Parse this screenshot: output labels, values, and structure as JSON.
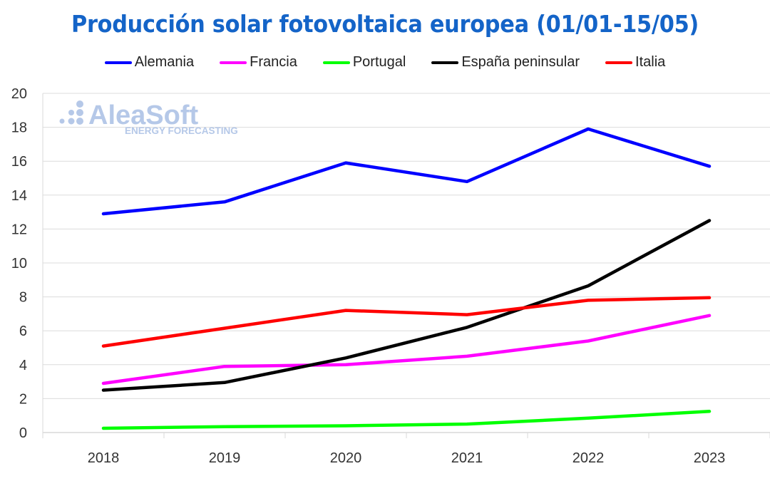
{
  "chart_data": {
    "type": "line",
    "title": "Producción solar fotovoltaica europea (01/01-15/05)",
    "xlabel": "",
    "ylabel": "",
    "categories": [
      "2018",
      "2019",
      "2020",
      "2021",
      "2022",
      "2023"
    ],
    "ylim": [
      0,
      20
    ],
    "yticks": [
      "0",
      "2",
      "4",
      "6",
      "8",
      "10",
      "12",
      "14",
      "16",
      "18",
      "20"
    ],
    "grid": true,
    "legend_position": "top-center",
    "series": [
      {
        "name": "Alemania",
        "color": "#0000ff",
        "values": [
          12.9,
          13.6,
          15.9,
          14.8,
          17.9,
          15.7
        ]
      },
      {
        "name": "Francia",
        "color": "#ff00ff",
        "values": [
          2.9,
          3.9,
          4.0,
          4.5,
          5.4,
          6.9
        ]
      },
      {
        "name": "Portugal",
        "color": "#00ff00",
        "values": [
          0.25,
          0.35,
          0.4,
          0.5,
          0.85,
          1.25
        ]
      },
      {
        "name": "España peninsular",
        "color": "#000000",
        "values": [
          2.5,
          2.95,
          4.4,
          6.2,
          8.65,
          12.5
        ]
      },
      {
        "name": "Italia",
        "color": "#ff0000",
        "values": [
          5.1,
          6.15,
          7.2,
          6.95,
          7.8,
          7.95
        ]
      }
    ]
  },
  "watermark": {
    "brand": "AleaSoft",
    "tagline": "ENERGY FORECASTING"
  }
}
